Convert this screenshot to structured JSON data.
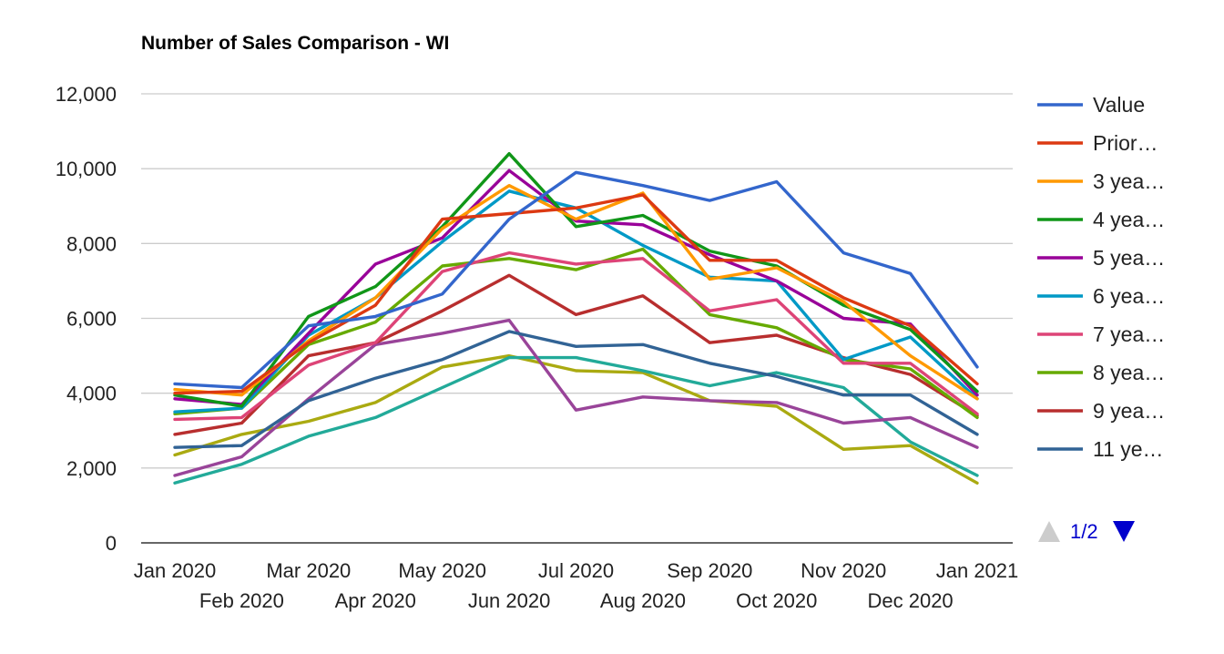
{
  "chart_data": {
    "type": "line",
    "title": "Number of Sales Comparison - WI",
    "xlabel": "",
    "ylabel": "",
    "ylim": [
      0,
      12000
    ],
    "y_ticks": [
      0,
      2000,
      4000,
      6000,
      8000,
      10000,
      12000
    ],
    "y_tick_labels": [
      "0",
      "2,000",
      "4,000",
      "6,000",
      "8,000",
      "10,000",
      "12,000"
    ],
    "grid": true,
    "legend_position": "right",
    "categories": [
      "Jan 2020",
      "Feb 2020",
      "Mar 2020",
      "Apr 2020",
      "May 2020",
      "Jun 2020",
      "Jul 2020",
      "Aug 2020",
      "Sep 2020",
      "Oct 2020",
      "Nov 2020",
      "Dec 2020",
      "Jan 2021"
    ],
    "series": [
      {
        "name": "Value",
        "color": "#3366cc",
        "values": [
          4250,
          4150,
          5800,
          6050,
          6650,
          8650,
          9900,
          9550,
          9150,
          9650,
          7750,
          7200,
          4700
        ]
      },
      {
        "name": "Prior…",
        "color": "#dc3912",
        "values": [
          4000,
          4050,
          5350,
          6350,
          8650,
          8800,
          8950,
          9300,
          7550,
          7550,
          6550,
          5800,
          4250
        ]
      },
      {
        "name": "3 yea…",
        "color": "#ff9900",
        "values": [
          4100,
          3950,
          5400,
          6550,
          8400,
          9550,
          8650,
          9350,
          7050,
          7350,
          6450,
          5000,
          3850
        ]
      },
      {
        "name": "4 yea…",
        "color": "#109618",
        "values": [
          3950,
          3650,
          6050,
          6850,
          8450,
          10400,
          8450,
          8750,
          7800,
          7400,
          6350,
          5700,
          4050
        ]
      },
      {
        "name": "5 yea…",
        "color": "#990099",
        "values": [
          3850,
          3700,
          5600,
          7450,
          8150,
          9950,
          8600,
          8500,
          7700,
          7000,
          6000,
          5850,
          3950
        ]
      },
      {
        "name": "6 yea…",
        "color": "#0099c6",
        "values": [
          3500,
          3600,
          5550,
          6550,
          8050,
          9400,
          8950,
          7950,
          7100,
          7000,
          4900,
          5500,
          3850
        ]
      },
      {
        "name": "7 yea…",
        "color": "#dd4477",
        "values": [
          3300,
          3350,
          4750,
          5350,
          7250,
          7750,
          7450,
          7600,
          6200,
          6500,
          4800,
          4800,
          3450
        ]
      },
      {
        "name": "8 yea…",
        "color": "#66aa00",
        "values": [
          3450,
          3600,
          5300,
          5900,
          7400,
          7600,
          7300,
          7850,
          6100,
          5750,
          4900,
          4650,
          3350
        ]
      },
      {
        "name": "9 yea…",
        "color": "#b82e2e",
        "values": [
          2900,
          3200,
          5000,
          5350,
          6200,
          7150,
          6100,
          6600,
          5350,
          5550,
          4950,
          4500,
          3400
        ]
      },
      {
        "name": "11 ye…",
        "color": "#316395",
        "values": [
          2550,
          2600,
          3800,
          4400,
          4900,
          5650,
          5250,
          5300,
          4800,
          4450,
          3950,
          3950,
          2900
        ]
      },
      {
        "name": "",
        "color": "#994499",
        "values": [
          1800,
          2300,
          3850,
          5300,
          5600,
          5950,
          3550,
          3900,
          3800,
          3750,
          3200,
          3350,
          2550
        ]
      },
      {
        "name": "",
        "color": "#22aa99",
        "values": [
          1600,
          2100,
          2850,
          3350,
          4150,
          4950,
          4950,
          4600,
          4200,
          4550,
          4150,
          2700,
          1800
        ]
      },
      {
        "name": "",
        "color": "#aaaa11",
        "values": [
          2350,
          2900,
          3250,
          3750,
          4700,
          5000,
          4600,
          4550,
          3800,
          3650,
          2500,
          2600,
          1600
        ]
      }
    ]
  },
  "legend": {
    "pager": {
      "label": "1/2",
      "prev_icon": "triangle-up-icon",
      "next_icon": "triangle-down-icon",
      "prev_enabled": false,
      "next_enabled": true
    }
  }
}
